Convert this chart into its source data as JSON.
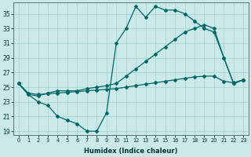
{
  "xlabel": "Humidex (Indice chaleur)",
  "bg_color": "#cce9e9",
  "grid_color": "#aad4d4",
  "line_color": "#006666",
  "xlim": [
    -0.5,
    23.5
  ],
  "ylim": [
    18.5,
    36.5
  ],
  "xticks": [
    0,
    1,
    2,
    3,
    4,
    5,
    6,
    7,
    8,
    9,
    10,
    11,
    12,
    13,
    14,
    15,
    16,
    17,
    18,
    19,
    20,
    21,
    22,
    23
  ],
  "yticks": [
    19,
    21,
    23,
    25,
    27,
    29,
    31,
    33,
    35
  ],
  "line1_x": [
    0,
    1,
    2,
    3,
    4,
    5,
    6,
    7,
    8,
    9,
    10,
    11,
    12,
    13,
    14,
    15,
    16,
    17,
    18,
    19,
    20,
    21,
    22,
    23
  ],
  "line1_y": [
    25.5,
    24.0,
    23.0,
    22.5,
    21.0,
    20.5,
    20.0,
    19.0,
    19.0,
    21.5,
    31.0,
    33.0,
    36.0,
    34.5,
    36.0,
    35.5,
    35.5,
    35.0,
    34.0,
    33.0,
    32.5,
    29.0,
    25.5,
    26.0
  ],
  "line2_x": [
    0,
    1,
    2,
    3,
    4,
    5,
    6,
    7,
    8,
    9,
    10,
    11,
    12,
    13,
    14,
    15,
    16,
    17,
    18,
    19,
    20,
    21,
    22,
    23
  ],
  "line2_y": [
    25.5,
    24.0,
    23.8,
    24.2,
    24.5,
    24.5,
    24.5,
    24.8,
    25.0,
    25.2,
    25.5,
    26.5,
    27.5,
    28.5,
    29.5,
    30.5,
    31.5,
    32.5,
    33.0,
    33.5,
    33.0,
    29.0,
    25.5,
    26.0
  ],
  "line3_x": [
    0,
    1,
    2,
    3,
    4,
    5,
    6,
    7,
    8,
    9,
    10,
    11,
    12,
    13,
    14,
    15,
    16,
    17,
    18,
    19,
    20,
    21,
    22,
    23
  ],
  "line3_y": [
    25.5,
    24.2,
    24.0,
    24.1,
    24.2,
    24.3,
    24.4,
    24.5,
    24.6,
    24.7,
    24.8,
    25.0,
    25.2,
    25.4,
    25.6,
    25.8,
    26.0,
    26.2,
    26.4,
    26.5,
    26.5,
    25.8,
    25.6,
    26.0
  ],
  "figsize": [
    3.2,
    2.0
  ],
  "dpi": 100
}
